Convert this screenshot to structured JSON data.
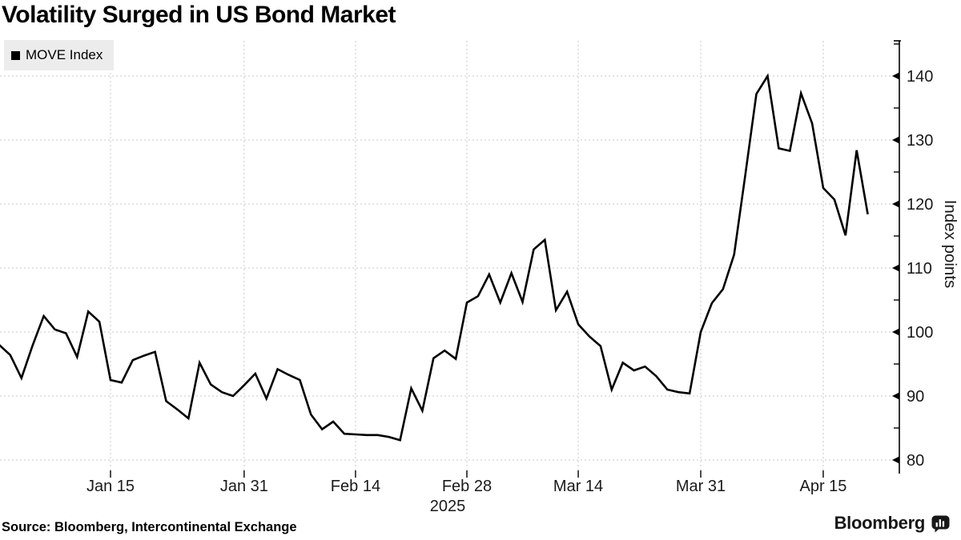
{
  "page": {
    "title": "Volatility Surged in US Bond Market",
    "source": "Source: Bloomberg, Intercontinental Exchange",
    "brand": "Bloomberg"
  },
  "colors": {
    "line": "#000000",
    "grid": "#c9c9c9",
    "axis": "#000000",
    "text": "#1a1a1a",
    "legend_bg": "#ececec",
    "background": "#ffffff"
  },
  "chart_data": {
    "type": "line",
    "title": "Volatility Surged in US Bond Market",
    "ylabel": "Index points",
    "ylim": [
      78.4,
      145.5
    ],
    "yticks": [
      80,
      90,
      100,
      110,
      120,
      130,
      140
    ],
    "y_minor_tick_step": 5,
    "grid": true,
    "legend": [
      {
        "label": "MOVE Index",
        "color": "#000000"
      }
    ],
    "legend_position": "top-left",
    "x_axis": {
      "unit": "consecutive business days (index i of series values)",
      "ticks": [
        {
          "label": "Jan 15",
          "i": 10
        },
        {
          "label": "Jan 31",
          "i": 22
        },
        {
          "label": "Feb 14",
          "i": 32
        },
        {
          "label": "Feb 28",
          "i": 42
        },
        {
          "label": "Mar 14",
          "i": 52
        },
        {
          "label": "Mar 31",
          "i": 63
        },
        {
          "label": "Apr 15",
          "i": 74
        }
      ],
      "year_label": "2025",
      "year_under_tick": "Feb 28"
    },
    "series": [
      {
        "name": "MOVE Index",
        "color": "#000000",
        "values": [
          98.0,
          96.4,
          92.8,
          97.9,
          102.5,
          100.4,
          99.8,
          96.1,
          103.2,
          101.6,
          92.5,
          92.1,
          95.6,
          96.3,
          96.9,
          89.2,
          87.9,
          86.5,
          95.2,
          91.8,
          90.6,
          90.0,
          91.7,
          93.5,
          89.6,
          94.2,
          93.3,
          92.5,
          87.1,
          84.8,
          86.0,
          84.1,
          84.0,
          83.9,
          83.9,
          83.6,
          83.1,
          91.2,
          87.7,
          95.9,
          97.1,
          95.8,
          104.6,
          105.6,
          109.0,
          104.6,
          109.2,
          104.7,
          112.9,
          114.4,
          103.4,
          106.3,
          101.2,
          99.3,
          97.8,
          91.0,
          95.2,
          94.0,
          94.6,
          93.1,
          91.0,
          90.6,
          90.4,
          100.0,
          104.5,
          106.7,
          112.1,
          124.5,
          137.2,
          140.0,
          128.7,
          128.3,
          137.3,
          132.6,
          122.5,
          120.7,
          115.1,
          128.4,
          118.4
        ]
      }
    ]
  }
}
